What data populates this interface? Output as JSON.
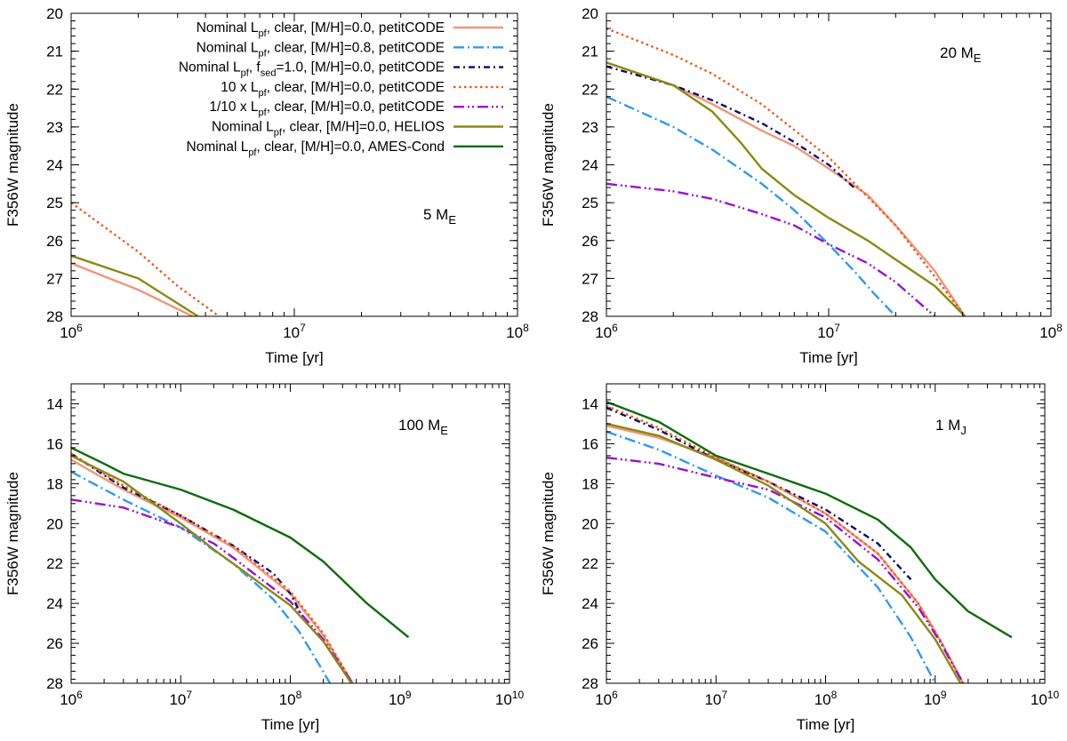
{
  "figure": {
    "colors": {
      "nominal": "#f0967a",
      "metal08": "#2e9bef",
      "fsed": "#0b0b6e",
      "x10": "#f05a1a",
      "x01": "#9b0fd3",
      "helios": "#8a8a14",
      "ames": "#0f6b0f"
    },
    "legend": [
      {
        "key": "nominal",
        "pre": "Nominal  L",
        "sub": "pf",
        "post": ", clear, [M/H]=0.0, petitCODE"
      },
      {
        "key": "metal08",
        "pre": "Nominal  L",
        "sub": "pf",
        "post": ", clear, [M/H]=0.8, petitCODE"
      },
      {
        "key": "fsed",
        "pre": "Nominal  L",
        "sub": "pf",
        "mid": ", f",
        "sub2": "sed",
        "post": "=1.0, [M/H]=0.0, petitCODE"
      },
      {
        "key": "x10",
        "pre": "10 x L",
        "sub": "pf",
        "post": ", clear, [M/H]=0.0, petitCODE"
      },
      {
        "key": "x01",
        "pre": "1/10 x L",
        "sub": "pf",
        "post": ", clear, [M/H]=0.0, petitCODE"
      },
      {
        "key": "helios",
        "pre": "Nominal  L",
        "sub": "pf",
        "post": ", clear, [M/H]=0.0, HELIOS"
      },
      {
        "key": "ames",
        "pre": "Nominal  L",
        "sub": "pf",
        "post": ", clear, [M/H]=0.0, AMES-Cond"
      }
    ]
  },
  "chart_data": [
    {
      "type": "line",
      "panel": "top-left",
      "annotation": {
        "main": "5 M",
        "sub": "E"
      },
      "xlabel": "Time [yr]",
      "ylabel": "F356W magnitude",
      "xscale": "log",
      "xlim": [
        1000000.0,
        100000000.0
      ],
      "ylim": [
        28,
        20
      ],
      "xticks": [
        6,
        7,
        8
      ],
      "yticks": [
        20,
        21,
        22,
        23,
        24,
        25,
        26,
        27,
        28
      ],
      "series": [
        {
          "key": "nominal",
          "x": [
            1000000.0,
            2000000.0,
            3500000.0
          ],
          "y": [
            26.6,
            27.3,
            28.0
          ]
        },
        {
          "key": "helios",
          "x": [
            1000000.0,
            2000000.0,
            3700000.0
          ],
          "y": [
            26.4,
            27.0,
            28.0
          ]
        },
        {
          "key": "x10",
          "x": [
            1000000.0,
            2000000.0,
            3000000.0,
            4600000.0
          ],
          "y": [
            25.0,
            26.3,
            27.2,
            28.0
          ]
        }
      ]
    },
    {
      "type": "line",
      "panel": "top-right",
      "annotation": {
        "main": "20 M",
        "sub": "E"
      },
      "xlabel": "Time [yr]",
      "ylabel": "F356W magnitude",
      "xscale": "log",
      "xlim": [
        1000000.0,
        100000000.0
      ],
      "ylim": [
        28,
        20
      ],
      "xticks": [
        6,
        7,
        8
      ],
      "yticks": [
        20,
        21,
        22,
        23,
        24,
        25,
        26,
        27,
        28
      ],
      "series": [
        {
          "key": "nominal",
          "x": [
            1000000.0,
            2000000.0,
            3000000.0,
            5000000.0,
            7000000.0,
            10000000.0,
            15000000.0,
            20000000.0,
            30000000.0,
            41000000.0
          ],
          "y": [
            21.3,
            21.9,
            22.4,
            23.1,
            23.5,
            24.1,
            24.8,
            25.6,
            26.8,
            28.0
          ]
        },
        {
          "key": "metal08",
          "x": [
            1000000.0,
            2000000.0,
            3000000.0,
            5000000.0,
            7000000.0,
            10000000.0,
            13000000.0,
            16000000.0,
            20000000.0
          ],
          "y": [
            22.2,
            23.0,
            23.6,
            24.5,
            25.2,
            26.1,
            26.8,
            27.4,
            28.0
          ]
        },
        {
          "key": "fsed",
          "x": [
            1000000.0,
            2000000.0,
            3000000.0,
            5000000.0,
            7000000.0,
            10000000.0,
            13000000.0
          ],
          "y": [
            21.4,
            21.9,
            22.3,
            22.9,
            23.4,
            24.0,
            24.6
          ]
        },
        {
          "key": "x10",
          "x": [
            1000000.0,
            2000000.0,
            3000000.0,
            5000000.0,
            10000000.0,
            20000000.0,
            41000000.0
          ],
          "y": [
            20.4,
            21.1,
            21.6,
            22.4,
            23.8,
            25.6,
            28.0
          ]
        },
        {
          "key": "x01",
          "x": [
            1000000.0,
            2000000.0,
            3000000.0,
            5000000.0,
            7000000.0,
            10000000.0,
            15000000.0,
            20000000.0,
            30000000.0
          ],
          "y": [
            24.5,
            24.7,
            24.9,
            25.3,
            25.6,
            26.1,
            26.6,
            27.1,
            28.0
          ]
        },
        {
          "key": "helios",
          "x": [
            1000000.0,
            2000000.0,
            3000000.0,
            4000000.0,
            5000000.0,
            7000000.0,
            10000000.0,
            15000000.0,
            20000000.0,
            30000000.0,
            41000000.0
          ],
          "y": [
            21.3,
            21.9,
            22.6,
            23.4,
            24.1,
            24.8,
            25.4,
            26.0,
            26.5,
            27.2,
            28.0
          ]
        }
      ]
    },
    {
      "type": "line",
      "panel": "bottom-left",
      "annotation": {
        "main": "100 M",
        "sub": "E"
      },
      "xlabel": "Time [yr]",
      "ylabel": "F356W magnitude",
      "xscale": "log",
      "xlim": [
        1000000.0,
        10000000000.0
      ],
      "ylim": [
        28,
        13
      ],
      "xticks": [
        6,
        7,
        8,
        9,
        10
      ],
      "yticks": [
        14,
        16,
        18,
        20,
        22,
        24,
        26,
        28
      ],
      "series": [
        {
          "key": "nominal",
          "x": [
            1000000.0,
            3000000.0,
            10000000.0,
            30000000.0,
            100000000.0,
            200000000.0,
            370000000.0
          ],
          "y": [
            16.8,
            18.3,
            19.7,
            21.2,
            23.5,
            25.6,
            28.0
          ]
        },
        {
          "key": "metal08",
          "x": [
            1000000.0,
            3000000.0,
            10000000.0,
            30000000.0,
            70000000.0,
            120000000.0,
            180000000.0,
            230000000.0
          ],
          "y": [
            17.4,
            18.8,
            20.2,
            22.0,
            23.8,
            25.4,
            27.0,
            28.0
          ]
        },
        {
          "key": "fsed",
          "x": [
            1000000.0,
            3000000.0,
            10000000.0,
            30000000.0,
            70000000.0,
            100000000.0,
            130000000.0
          ],
          "y": [
            16.5,
            18.2,
            19.6,
            21.1,
            22.5,
            23.5,
            24.7
          ]
        },
        {
          "key": "x10",
          "x": [
            1000000.0,
            3000000.0,
            10000000.0,
            30000000.0,
            100000000.0,
            200000000.0,
            370000000.0
          ],
          "y": [
            16.5,
            18.1,
            19.6,
            21.1,
            23.4,
            25.5,
            28.0
          ]
        },
        {
          "key": "x01",
          "x": [
            1000000.0,
            3000000.0,
            10000000.0,
            20000000.0,
            30000000.0,
            100000000.0,
            200000000.0,
            370000000.0
          ],
          "y": [
            18.8,
            19.2,
            20.2,
            21.0,
            21.7,
            23.9,
            25.8,
            28.0
          ]
        },
        {
          "key": "helios",
          "x": [
            1000000.0,
            3000000.0,
            10000000.0,
            20000000.0,
            30000000.0,
            100000000.0,
            200000000.0,
            360000000.0
          ],
          "y": [
            16.6,
            17.9,
            20.0,
            21.3,
            22.0,
            24.1,
            25.9,
            28.0
          ]
        },
        {
          "key": "ames",
          "x": [
            1000000.0,
            2000000.0,
            3000000.0,
            10000000.0,
            30000000.0,
            100000000.0,
            200000000.0,
            500000000.0,
            1200000000.0
          ],
          "y": [
            16.2,
            17.0,
            17.5,
            18.3,
            19.3,
            20.7,
            21.9,
            24.0,
            25.7
          ]
        }
      ]
    },
    {
      "type": "line",
      "panel": "bottom-right",
      "annotation": {
        "main": "1 M",
        "sub": "J"
      },
      "xlabel": "Time [yr]",
      "ylabel": "F356W magnitude",
      "xscale": "log",
      "xlim": [
        1000000.0,
        10000000000.0
      ],
      "ylim": [
        28,
        13
      ],
      "xticks": [
        6,
        7,
        8,
        9,
        10
      ],
      "yticks": [
        14,
        16,
        18,
        20,
        22,
        24,
        26,
        28
      ],
      "series": [
        {
          "key": "nominal",
          "x": [
            1000000.0,
            3000000.0,
            10000000.0,
            30000000.0,
            100000000.0,
            300000000.0,
            700000000.0,
            1100000000.0,
            1800000000.0
          ],
          "y": [
            15.1,
            15.7,
            16.7,
            17.9,
            19.5,
            21.5,
            24.0,
            25.8,
            28.0
          ]
        },
        {
          "key": "metal08",
          "x": [
            1000000.0,
            3000000.0,
            10000000.0,
            30000000.0,
            100000000.0,
            300000000.0,
            600000000.0,
            1000000000.0
          ],
          "y": [
            15.4,
            16.3,
            17.6,
            18.7,
            20.4,
            23.2,
            25.7,
            28.0
          ]
        },
        {
          "key": "fsed",
          "x": [
            1000000.0,
            3000000.0,
            10000000.0,
            30000000.0,
            100000000.0,
            300000000.0,
            600000000.0
          ],
          "y": [
            14.2,
            15.3,
            16.8,
            17.9,
            19.3,
            21.0,
            22.8
          ]
        },
        {
          "key": "x10",
          "x": [
            1000000.0,
            3000000.0,
            10000000.0,
            30000000.0,
            100000000.0,
            300000000.0,
            700000000.0,
            1100000000.0,
            1800000000.0
          ],
          "y": [
            14.1,
            15.2,
            16.7,
            17.9,
            19.5,
            21.5,
            24.0,
            25.8,
            28.0
          ]
        },
        {
          "key": "x01",
          "x": [
            1000000.0,
            3000000.0,
            10000000.0,
            30000000.0,
            100000000.0,
            300000000.0,
            700000000.0,
            1100000000.0,
            1800000000.0
          ],
          "y": [
            16.7,
            17.0,
            17.7,
            18.3,
            19.7,
            21.8,
            24.2,
            25.9,
            28.0
          ]
        },
        {
          "key": "helios",
          "x": [
            1000000.0,
            3000000.0,
            10000000.0,
            30000000.0,
            100000000.0,
            200000000.0,
            500000000.0,
            1000000000.0,
            1700000000.0
          ],
          "y": [
            15.0,
            15.6,
            16.8,
            18.1,
            20.0,
            21.9,
            23.6,
            25.8,
            28.0
          ]
        },
        {
          "key": "ames",
          "x": [
            1000000.0,
            3000000.0,
            10000000.0,
            30000000.0,
            100000000.0,
            300000000.0,
            600000000.0,
            1000000000.0,
            2000000000.0,
            5000000000.0
          ],
          "y": [
            13.9,
            14.9,
            16.6,
            17.5,
            18.5,
            19.8,
            21.2,
            22.8,
            24.4,
            25.7
          ]
        }
      ]
    }
  ]
}
